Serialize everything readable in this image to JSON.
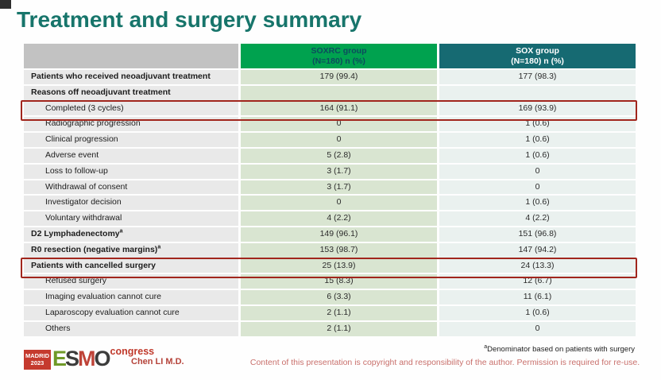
{
  "slide": {
    "title": "Treatment and surgery summary",
    "presenter": "Chen LI M.D.",
    "footnote_marker": "a",
    "footnote_text": "Denominator based on patients with surgery",
    "copyright": "Content of this presentation is copyright and responsibility of the author. Permission is required for re-use."
  },
  "logo": {
    "madrid": "MADRID",
    "year": "2023",
    "letters": [
      "E",
      "S",
      "M",
      "O"
    ],
    "congress": "congress"
  },
  "colors": {
    "title": "#17756b",
    "header_green": "#00a24f",
    "header_teal": "#166a72",
    "header_gray": "#c2c2c2",
    "col_label_bg": "#e9e9e9",
    "col_soxrc_bg": "#d9e5d1",
    "col_sox_bg": "#eaf1ef",
    "highlight_border": "#a1261d",
    "accent_red": "#b5433a"
  },
  "table": {
    "header": {
      "col2_line1": "SOXRC group",
      "col2_line2": "(N=180)  n (%)",
      "col3_line1": "SOX group",
      "col3_line2": "(N=180)  n (%)"
    },
    "rows": [
      {
        "label": "Patients who received neoadjuvant treatment",
        "bold": true,
        "indent": false,
        "soxrc": "179 (99.4)",
        "sox": "177 (98.3)",
        "highlight": false
      },
      {
        "label": "Reasons off neoadjuvant treatment",
        "bold": true,
        "indent": false,
        "soxrc": "",
        "sox": "",
        "highlight": false
      },
      {
        "label": "Completed (3 cycles)",
        "bold": false,
        "indent": true,
        "soxrc": "164 (91.1)",
        "sox": "169 (93.9)",
        "highlight": true
      },
      {
        "label": "Radiographic progression",
        "bold": false,
        "indent": true,
        "soxrc": "0",
        "sox": "1 (0.6)",
        "highlight": false
      },
      {
        "label": "Clinical progression",
        "bold": false,
        "indent": true,
        "soxrc": "0",
        "sox": "1 (0.6)",
        "highlight": false
      },
      {
        "label": "Adverse event",
        "bold": false,
        "indent": true,
        "soxrc": "5 (2.8)",
        "sox": "1 (0.6)",
        "highlight": false
      },
      {
        "label": "Loss to follow-up",
        "bold": false,
        "indent": true,
        "soxrc": "3 (1.7)",
        "sox": "0",
        "highlight": false
      },
      {
        "label": "Withdrawal of consent",
        "bold": false,
        "indent": true,
        "soxrc": "3 (1.7)",
        "sox": "0",
        "highlight": false
      },
      {
        "label": "Investigator decision",
        "bold": false,
        "indent": true,
        "soxrc": "0",
        "sox": "1 (0.6)",
        "highlight": false
      },
      {
        "label": "Voluntary withdrawal",
        "bold": false,
        "indent": true,
        "soxrc": "4 (2.2)",
        "sox": "4 (2.2)",
        "highlight": false
      },
      {
        "label": "D2 Lymphadenectomy",
        "sup": "a",
        "bold": true,
        "indent": false,
        "soxrc": "149 (96.1)",
        "sox": "151 (96.8)",
        "highlight": false
      },
      {
        "label": "R0 resection (negative margins)",
        "sup": "a",
        "bold": true,
        "indent": false,
        "soxrc": "153 (98.7)",
        "sox": "147 (94.2)",
        "highlight": false
      },
      {
        "label": "Patients with cancelled surgery",
        "bold": true,
        "indent": false,
        "soxrc": "25 (13.9)",
        "sox": "24 (13.3)",
        "highlight": true
      },
      {
        "label": "Refused surgery",
        "bold": false,
        "indent": true,
        "soxrc": "15 (8.3)",
        "sox": "12 (6.7)",
        "highlight": false
      },
      {
        "label": "Imaging evaluation cannot cure",
        "bold": false,
        "indent": true,
        "soxrc": "6 (3.3)",
        "sox": "11 (6.1)",
        "highlight": false
      },
      {
        "label": "Laparoscopy evaluation cannot cure",
        "bold": false,
        "indent": true,
        "soxrc": "2 (1.1)",
        "sox": "1 (0.6)",
        "highlight": false
      },
      {
        "label": "Others",
        "bold": false,
        "indent": true,
        "soxrc": "2 (1.1)",
        "sox": "0",
        "highlight": false
      }
    ]
  }
}
